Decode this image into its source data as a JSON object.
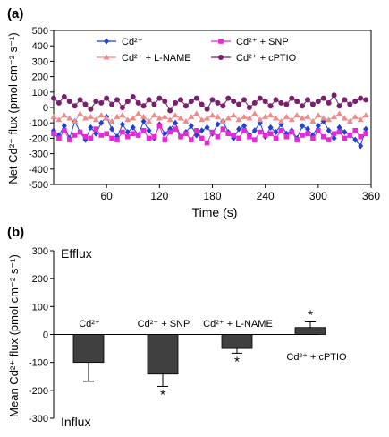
{
  "chart_data": [
    {
      "panel": "(a)",
      "type": "line",
      "xlabel": "Time (s)",
      "ylabel": "Net Cd²⁺ flux (pmol cm⁻² s⁻¹)",
      "xlim": [
        0,
        360
      ],
      "ylim": [
        -500,
        500
      ],
      "xticks": [
        60,
        120,
        180,
        240,
        300,
        360
      ],
      "yticks": [
        500,
        400,
        300,
        200,
        100,
        0,
        -100,
        -200,
        -300,
        -400,
        -500
      ],
      "legend": "top",
      "x": [
        0,
        6,
        12,
        18,
        24,
        30,
        36,
        42,
        48,
        54,
        60,
        66,
        72,
        78,
        84,
        90,
        96,
        102,
        108,
        114,
        120,
        126,
        132,
        138,
        144,
        150,
        156,
        162,
        168,
        174,
        180,
        186,
        192,
        198,
        204,
        210,
        216,
        222,
        228,
        234,
        240,
        246,
        252,
        258,
        264,
        270,
        276,
        282,
        288,
        294,
        300,
        306,
        312,
        318,
        324,
        330,
        336,
        342,
        348,
        354
      ],
      "series": [
        {
          "name": "Cd²⁺",
          "color": "#1f3fd6",
          "marker": "diamond",
          "values": [
            -150,
            -180,
            -120,
            -200,
            -90,
            -160,
            -210,
            -130,
            -170,
            -100,
            -60,
            -140,
            -190,
            -110,
            -160,
            -130,
            -180,
            -90,
            -150,
            -200,
            -110,
            -170,
            -140,
            -100,
            -190,
            -160,
            -120,
            -180,
            -150,
            -130,
            -170,
            -110,
            -90,
            -160,
            -200,
            -140,
            -120,
            -180,
            -150,
            -100,
            -190,
            -130,
            -160,
            -110,
            -170,
            -150,
            -200,
            -120,
            -140,
            -180,
            -120,
            -90,
            -150,
            -200,
            -130,
            -160,
            -180,
            -210,
            -250,
            -140
          ]
        },
        {
          "name": "Cd²⁺ + SNP",
          "color": "#e828d8",
          "marker": "square",
          "values": [
            -170,
            -200,
            -150,
            -210,
            -180,
            -160,
            -190,
            -200,
            -140,
            -180,
            -170,
            -200,
            -210,
            -160,
            -190,
            -170,
            -180,
            -150,
            -200,
            -190,
            -120,
            -210,
            -160,
            -140,
            -190,
            -170,
            -210,
            -150,
            -200,
            -230,
            -160,
            -190,
            -140,
            -170,
            -180,
            -200,
            -150,
            -190,
            -210,
            -160,
            -180,
            -170,
            -200,
            -150,
            -190,
            -160,
            -210,
            -180,
            -170,
            -200,
            -150,
            -190,
            -210,
            -170,
            -160,
            -200,
            -180,
            -150,
            -190,
            -170
          ]
        },
        {
          "name": "Cd²⁺ + L-NAME",
          "color": "#f08a8a",
          "marker": "triangle",
          "values": [
            -60,
            -80,
            -50,
            -70,
            -90,
            -40,
            -70,
            -60,
            -80,
            -50,
            -70,
            -90,
            -60,
            -50,
            -80,
            -70,
            -40,
            -60,
            -90,
            -50,
            -70,
            -60,
            -80,
            -50,
            -70,
            -90,
            -60,
            -40,
            -80,
            -70,
            -50,
            -60,
            -90,
            -70,
            -50,
            -80,
            -60,
            -70,
            -40,
            -80,
            -60,
            -50,
            -70,
            -90,
            -60,
            -80,
            -50,
            -70,
            -60,
            -90,
            -50,
            -70,
            -80,
            -60,
            -40,
            -70,
            -90,
            -60,
            -80,
            -50
          ]
        },
        {
          "name": "Cd²⁺ + cPTIO",
          "color": "#7a1f6e",
          "marker": "circle",
          "values": [
            60,
            30,
            70,
            40,
            10,
            50,
            20,
            -10,
            40,
            30,
            60,
            20,
            50,
            0,
            40,
            70,
            30,
            10,
            50,
            20,
            60,
            40,
            -20,
            30,
            50,
            10,
            40,
            60,
            20,
            -10,
            50,
            30,
            10,
            60,
            40,
            20,
            50,
            0,
            30,
            60,
            40,
            10,
            50,
            30,
            20,
            60,
            40,
            10,
            50,
            20,
            40,
            60,
            30,
            80,
            10,
            50,
            20,
            40,
            60,
            50
          ]
        }
      ]
    },
    {
      "panel": "(b)",
      "type": "bar",
      "ylabel": "Mean Cd²⁺ flux (pmol cm⁻² s⁻¹)",
      "ylim": [
        -300,
        300
      ],
      "yticks": [
        300,
        200,
        100,
        0,
        -100,
        -200,
        -300
      ],
      "annotations_region": [
        "Efflux",
        "Influx"
      ],
      "bar_color": "#404040",
      "categories": [
        "Cd²⁺",
        "Cd²⁺ + SNP",
        "Cd²⁺ + L-NAME",
        "Cd²⁺ + cPTIO"
      ],
      "values": [
        -100,
        -142,
        -50,
        25
      ],
      "errors": [
        68,
        44,
        17,
        20
      ],
      "significance": [
        "",
        "*",
        "*",
        "*"
      ]
    }
  ]
}
